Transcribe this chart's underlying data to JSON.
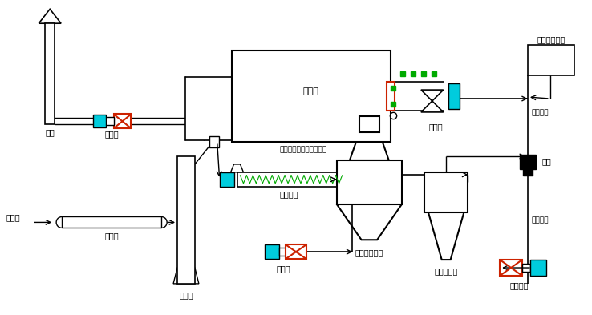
{
  "bg_color": "#ffffff",
  "cyan_color": "#00ccdd",
  "red_color": "#cc2200",
  "green_color": "#00aa00",
  "black_color": "#000000",
  "labels": {
    "chimney": "烟囱",
    "induced_fan": "引风机",
    "melting_furnace": "熔铝炉",
    "regenerative_system": "蓄热式高温空气燃烧系统",
    "burner": "燃烧器",
    "backup_fuel": "备用燃油系统",
    "gas_pipe1": "燃气管道",
    "gas_pipe2": "燃气管道",
    "valve": "盘阀",
    "high_temp_fan": "高温风机",
    "material_from_bin": "料仓来",
    "feeder": "送料机",
    "bucket_elevator": "斗提机",
    "feed_screw": "进料螺旋",
    "blower": "鼓风机",
    "gasifier": "生物质气化炉",
    "cyclone": "旋风除尘器"
  }
}
